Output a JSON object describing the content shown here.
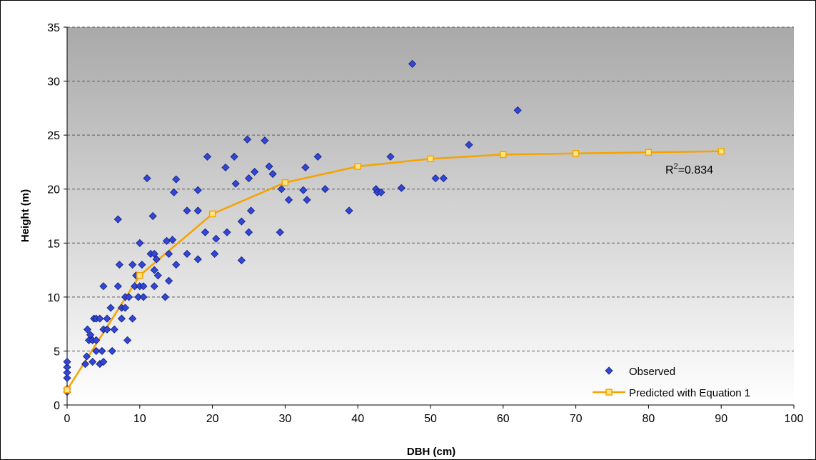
{
  "chart_data": {
    "type": "scatter",
    "xlabel": "DBH (cm)",
    "ylabel": "Height (m)",
    "xlim": [
      0,
      100
    ],
    "ylim": [
      0,
      35
    ],
    "x_ticks": [
      "0",
      "10",
      "20",
      "30",
      "40",
      "50",
      "60",
      "70",
      "80",
      "90",
      "100"
    ],
    "y_ticks": [
      "0",
      "5",
      "10",
      "15",
      "20",
      "25",
      "30",
      "35"
    ],
    "grid": "horizontal dashed",
    "legend_position": "bottom-right",
    "annotation": {
      "text_main": "R",
      "text_sup": "2",
      "text_rest": "=0.834"
    },
    "series": [
      {
        "name": "Observed",
        "kind": "scatter",
        "marker": "diamond",
        "color": "#3346d6",
        "points": [
          [
            0,
            1.2
          ],
          [
            0,
            2.5
          ],
          [
            0,
            3
          ],
          [
            0,
            3.5
          ],
          [
            0,
            4
          ],
          [
            0,
            1.5
          ],
          [
            2.5,
            3.8
          ],
          [
            2.7,
            4.5
          ],
          [
            2.8,
            7
          ],
          [
            3,
            6
          ],
          [
            3.2,
            6.5
          ],
          [
            3.5,
            4
          ],
          [
            3.5,
            6
          ],
          [
            3.7,
            8
          ],
          [
            4,
            5
          ],
          [
            4,
            8
          ],
          [
            4,
            6
          ],
          [
            4.5,
            3.8
          ],
          [
            4.5,
            8
          ],
          [
            4.8,
            5
          ],
          [
            5,
            4
          ],
          [
            5,
            7
          ],
          [
            5,
            11
          ],
          [
            5.5,
            8
          ],
          [
            5.5,
            7
          ],
          [
            6,
            9
          ],
          [
            6.2,
            5
          ],
          [
            6.5,
            7
          ],
          [
            7,
            17.2
          ],
          [
            7,
            11
          ],
          [
            7.2,
            13
          ],
          [
            7.5,
            9
          ],
          [
            7.5,
            8
          ],
          [
            8,
            10
          ],
          [
            8,
            9
          ],
          [
            8.3,
            6
          ],
          [
            8.5,
            10
          ],
          [
            9,
            13
          ],
          [
            9,
            8
          ],
          [
            9.3,
            11
          ],
          [
            9.5,
            12
          ],
          [
            9.8,
            10
          ],
          [
            10,
            15
          ],
          [
            10,
            11
          ],
          [
            10.3,
            13
          ],
          [
            10.5,
            10
          ],
          [
            10.5,
            11
          ],
          [
            11,
            21
          ],
          [
            11.5,
            14
          ],
          [
            11.8,
            17.5
          ],
          [
            12,
            12.5
          ],
          [
            12,
            14
          ],
          [
            12,
            11
          ],
          [
            12.3,
            13.5
          ],
          [
            12.5,
            12
          ],
          [
            13.5,
            10
          ],
          [
            13.7,
            15.2
          ],
          [
            14,
            14
          ],
          [
            14,
            11.5
          ],
          [
            14.5,
            15.3
          ],
          [
            14.7,
            19.7
          ],
          [
            15,
            20.9
          ],
          [
            15,
            13
          ],
          [
            16.5,
            18
          ],
          [
            16.5,
            14
          ],
          [
            18,
            18
          ],
          [
            18,
            13.5
          ],
          [
            18,
            19.9
          ],
          [
            19,
            16
          ],
          [
            19.3,
            23
          ],
          [
            20.3,
            14
          ],
          [
            20.5,
            15.4
          ],
          [
            21.8,
            22
          ],
          [
            22,
            16
          ],
          [
            23,
            23
          ],
          [
            23.2,
            20.5
          ],
          [
            24,
            17
          ],
          [
            24,
            13.4
          ],
          [
            24.8,
            24.6
          ],
          [
            25,
            16
          ],
          [
            25,
            21
          ],
          [
            25.3,
            18
          ],
          [
            25.8,
            21.6
          ],
          [
            27.2,
            24.5
          ],
          [
            27.8,
            22.1
          ],
          [
            28.3,
            21.4
          ],
          [
            29.3,
            16
          ],
          [
            29.5,
            20
          ],
          [
            30.5,
            19
          ],
          [
            32.5,
            19.9
          ],
          [
            32.8,
            22
          ],
          [
            33,
            19
          ],
          [
            34.5,
            23
          ],
          [
            35.5,
            20
          ],
          [
            38.8,
            18
          ],
          [
            42.5,
            20
          ],
          [
            42.7,
            19.7
          ],
          [
            43.2,
            19.7
          ],
          [
            44.5,
            23
          ],
          [
            46,
            20.1
          ],
          [
            47.5,
            31.6
          ],
          [
            50.7,
            21
          ],
          [
            51.8,
            21
          ],
          [
            55.3,
            24.1
          ],
          [
            62,
            27.3
          ]
        ]
      },
      {
        "name": "Predicted with Equation 1",
        "kind": "line",
        "marker": "square",
        "color": "#f5a300",
        "marker_fill": "#ffe680",
        "x": [
          0,
          10,
          20,
          30,
          40,
          50,
          60,
          70,
          80,
          90
        ],
        "y": [
          1.4,
          12,
          17.7,
          20.6,
          22.1,
          22.8,
          23.2,
          23.3,
          23.4,
          23.5
        ]
      }
    ]
  }
}
